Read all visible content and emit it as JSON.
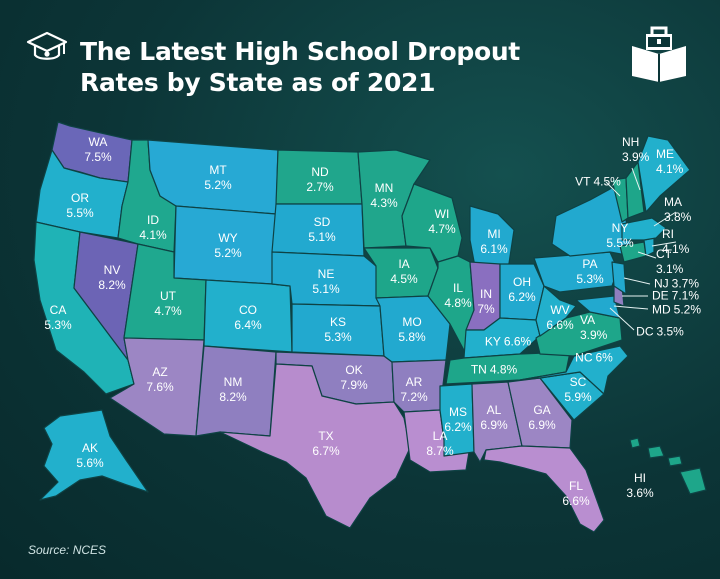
{
  "title": "The Latest High School Dropout Rates by State as of 2021",
  "source": "Source: NCES",
  "icons": [
    "graduation-cap-icon",
    "book-briefcase-logo-icon"
  ],
  "colors": {
    "background": "#0c3537",
    "teal_light": "#22b4c8",
    "teal_mid": "#1ba9a0",
    "green": "#20a68c",
    "blue": "#3aa6d6",
    "purple": "#6c64b5",
    "lavender": "#9a84c2",
    "pink": "#b98ed0"
  },
  "states": [
    {
      "abbr": "WA",
      "rate": "7.5%"
    },
    {
      "abbr": "OR",
      "rate": "5.5%"
    },
    {
      "abbr": "CA",
      "rate": "5.3%"
    },
    {
      "abbr": "NV",
      "rate": "8.2%"
    },
    {
      "abbr": "ID",
      "rate": "4.1%"
    },
    {
      "abbr": "MT",
      "rate": "5.2%"
    },
    {
      "abbr": "WY",
      "rate": "5.2%"
    },
    {
      "abbr": "UT",
      "rate": "4.7%"
    },
    {
      "abbr": "AZ",
      "rate": "7.6%"
    },
    {
      "abbr": "CO",
      "rate": "6.4%"
    },
    {
      "abbr": "NM",
      "rate": "8.2%"
    },
    {
      "abbr": "ND",
      "rate": "2.7%"
    },
    {
      "abbr": "SD",
      "rate": "5.1%"
    },
    {
      "abbr": "NE",
      "rate": "5.1%"
    },
    {
      "abbr": "KS",
      "rate": "5.3%"
    },
    {
      "abbr": "OK",
      "rate": "7.9%"
    },
    {
      "abbr": "TX",
      "rate": "6.7%"
    },
    {
      "abbr": "MN",
      "rate": "4.3%"
    },
    {
      "abbr": "IA",
      "rate": "4.5%"
    },
    {
      "abbr": "MO",
      "rate": "5.8%"
    },
    {
      "abbr": "AR",
      "rate": "7.2%"
    },
    {
      "abbr": "LA",
      "rate": "8.7%"
    },
    {
      "abbr": "WI",
      "rate": "4.7%"
    },
    {
      "abbr": "IL",
      "rate": "4.8%"
    },
    {
      "abbr": "MI",
      "rate": "6.1%"
    },
    {
      "abbr": "IN",
      "rate": "7%"
    },
    {
      "abbr": "OH",
      "rate": "6.2%"
    },
    {
      "abbr": "KY",
      "rate": "6.6%"
    },
    {
      "abbr": "TN",
      "rate": "4.8%"
    },
    {
      "abbr": "MS",
      "rate": "6.2%"
    },
    {
      "abbr": "AL",
      "rate": "6.9%"
    },
    {
      "abbr": "GA",
      "rate": "6.9%"
    },
    {
      "abbr": "FL",
      "rate": "6.6%"
    },
    {
      "abbr": "SC",
      "rate": "5.9%"
    },
    {
      "abbr": "NC",
      "rate": "6%"
    },
    {
      "abbr": "VA",
      "rate": "3.9%"
    },
    {
      "abbr": "WV",
      "rate": "6.6%"
    },
    {
      "abbr": "PA",
      "rate": "5.3%"
    },
    {
      "abbr": "NY",
      "rate": "5.5%"
    },
    {
      "abbr": "VT",
      "rate": "4.5%"
    },
    {
      "abbr": "NH",
      "rate": "3.9%"
    },
    {
      "abbr": "ME",
      "rate": "4.1%"
    },
    {
      "abbr": "MA",
      "rate": "3.8%"
    },
    {
      "abbr": "RI",
      "rate": "4.1%"
    },
    {
      "abbr": "CT",
      "rate": "3.1%"
    },
    {
      "abbr": "NJ",
      "rate": "3.7%"
    },
    {
      "abbr": "DE",
      "rate": "7.1%"
    },
    {
      "abbr": "MD",
      "rate": "5.2%"
    },
    {
      "abbr": "DC",
      "rate": "3.5%"
    },
    {
      "abbr": "AK",
      "rate": "5.6%"
    },
    {
      "abbr": "HI",
      "rate": "3.6%"
    }
  ]
}
